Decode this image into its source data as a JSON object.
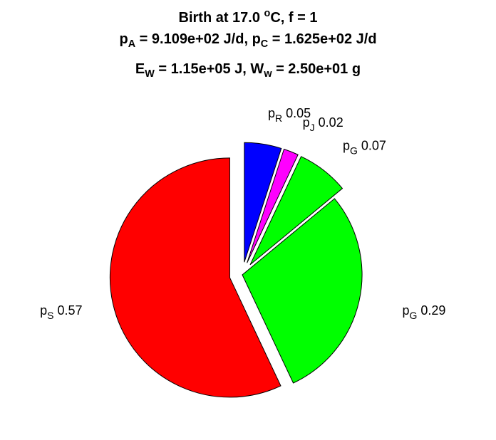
{
  "title": {
    "line1": {
      "a": "Birth at 17.0 ",
      "sup": "o",
      "b": "C, f = 1"
    },
    "line2": {
      "p1": "p",
      "s1": "A",
      "t1": " = 9.109e+02 J/d, ",
      "p2": "p",
      "s2": "C",
      "t2": " = 1.625e+02 J/d"
    },
    "line3": {
      "p1": "E",
      "s1": "W",
      "t1": " = 1.15e+05 J, ",
      "p2": "W",
      "s2": "w",
      "t2": " = 2.50e+01 g"
    }
  },
  "chart_data": {
    "type": "pie",
    "title": "Birth at 17.0 °C, f = 1",
    "start_angle": "top, clockwise",
    "slices": [
      {
        "name": "p",
        "subscript": "R",
        "value": 0.05,
        "label": "0.05",
        "color": "#0000ff",
        "exploded": true
      },
      {
        "name": "p",
        "subscript": "J",
        "value": 0.02,
        "label": "0.02",
        "color": "#ff00ff",
        "exploded": true
      },
      {
        "name": "p",
        "subscript": "G",
        "value": 0.07,
        "label": "0.07",
        "color": "#00ff00",
        "exploded": true
      },
      {
        "name": "p",
        "subscript": "G",
        "value": 0.29,
        "label": "0.29",
        "color": "#00ff00",
        "exploded": false
      },
      {
        "name": "p",
        "subscript": "S",
        "value": 0.57,
        "label": "0.57",
        "color": "#ff0000",
        "exploded": true
      }
    ]
  }
}
